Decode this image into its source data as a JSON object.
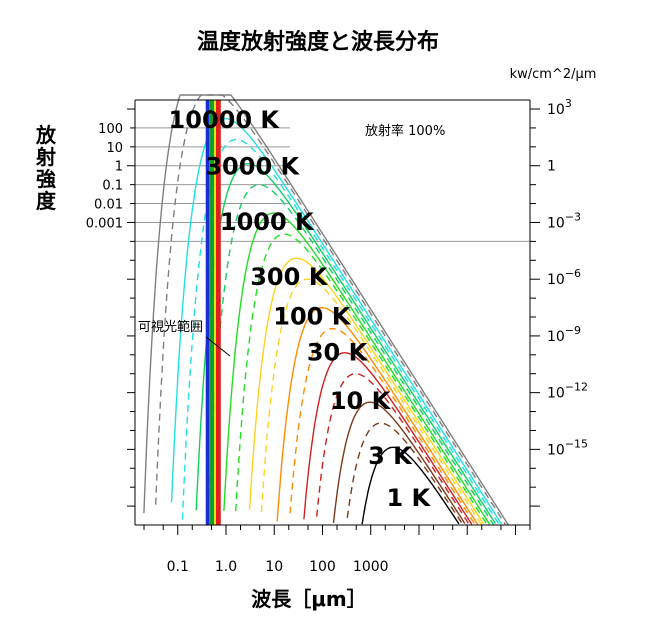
{
  "chart_data": {
    "type": "line",
    "title": "温度放射強度と波長分布",
    "xlabel": "波長［μm］",
    "ylabel": [
      "放",
      "射",
      "強",
      "度"
    ],
    "y2label": "kw/cm^2/μm",
    "annotation_emissivity": "放射率 100%",
    "annotation_visible": "可視光範囲",
    "x_scale": "log",
    "y_scale": "log",
    "xlim": [
      0.013,
      2000000
    ],
    "ylim": [
      1e-19,
      3000
    ],
    "x_ticks": [
      {
        "value": 0.1,
        "label": "0.1"
      },
      {
        "value": 1,
        "label": "1.0"
      },
      {
        "value": 10,
        "label": "10"
      },
      {
        "value": 100,
        "label": "100"
      },
      {
        "value": 1000,
        "label": "1000"
      }
    ],
    "y_left_ticks": [
      {
        "value": 100,
        "label": "100"
      },
      {
        "value": 10,
        "label": "10"
      },
      {
        "value": 1,
        "label": "1"
      },
      {
        "value": 0.1,
        "label": "0.1"
      },
      {
        "value": 0.01,
        "label": "0.01"
      },
      {
        "value": 0.001,
        "label": "0.001"
      }
    ],
    "y_right_ticks": [
      {
        "base": "10",
        "exp": "3",
        "value": 1000
      },
      {
        "base": "1",
        "exp": "",
        "value": 1
      },
      {
        "base": "10",
        "exp": "−3",
        "value": 0.001
      },
      {
        "base": "10",
        "exp": "−6",
        "value": 1e-06
      },
      {
        "base": "10",
        "exp": "−9",
        "value": 1e-09
      },
      {
        "base": "10",
        "exp": "−12",
        "value": 1e-12
      },
      {
        "base": "10",
        "exp": "−15",
        "value": 1e-15
      }
    ],
    "series": [
      {
        "temperature": 10000,
        "label": "10000 K",
        "color": "#7f7f7f",
        "dash": false,
        "label_at": [
          0.9,
          300
        ]
      },
      {
        "temperature": 6000,
        "color": "#7f7f7f",
        "dash": true
      },
      {
        "temperature": 3000,
        "label": "3000 K",
        "color": "#20e0e0",
        "dash": false,
        "label_at": [
          3.5,
          1.0
        ]
      },
      {
        "temperature": 1800,
        "color": "#20e0e0",
        "dash": true
      },
      {
        "temperature": 1000,
        "label": "1000 K",
        "color": "#10d060",
        "dash": false,
        "label_at": [
          7,
          0.0012
        ]
      },
      {
        "temperature": 600,
        "color": "#10d060",
        "dash": true
      },
      {
        "temperature": 300,
        "label": "300 K",
        "color": "#22dd22",
        "dash": false,
        "label_at": [
          20,
          1.5e-06
        ]
      },
      {
        "temperature": 180,
        "color": "#22dd22",
        "dash": true
      },
      {
        "temperature": 100,
        "label": "100 K",
        "color": "#ffd21e",
        "dash": false,
        "label_at": [
          60,
          1.2e-08
        ]
      },
      {
        "temperature": 60,
        "color": "#ffd21e",
        "dash": true
      },
      {
        "temperature": 30,
        "label": "30 K",
        "color": "#ff8c00",
        "dash": false,
        "label_at": [
          200,
          1.5e-10
        ]
      },
      {
        "temperature": 18,
        "color": "#ff8c00",
        "dash": true
      },
      {
        "temperature": 10,
        "label": "10 K",
        "color": "#cc2222",
        "dash": false,
        "label_at": [
          600,
          4e-13
        ]
      },
      {
        "temperature": 6,
        "color": "#cc2222",
        "dash": true
      },
      {
        "temperature": 3,
        "label": "3 K",
        "color": "#7a3a1a",
        "dash": false,
        "label_at": [
          2500,
          5e-16
        ]
      },
      {
        "temperature": 1.8,
        "color": "#7a3a1a",
        "dash": true
      },
      {
        "temperature": 1,
        "label": "1 K",
        "color": "#000000",
        "dash": false,
        "label_at": [
          6000,
          3e-18
        ]
      }
    ],
    "visible_bands": [
      {
        "from": 0.38,
        "to": 0.45,
        "color": "#1b2bd8"
      },
      {
        "from": 0.45,
        "to": 0.57,
        "color": "#12a02a"
      },
      {
        "from": 0.57,
        "to": 0.62,
        "color": "#e8e800"
      },
      {
        "from": 0.62,
        "to": 0.78,
        "color": "#e02020"
      }
    ],
    "grid": "horizontal lines at left-axis decades only",
    "legend": "none; temperatures labelled on curves"
  }
}
